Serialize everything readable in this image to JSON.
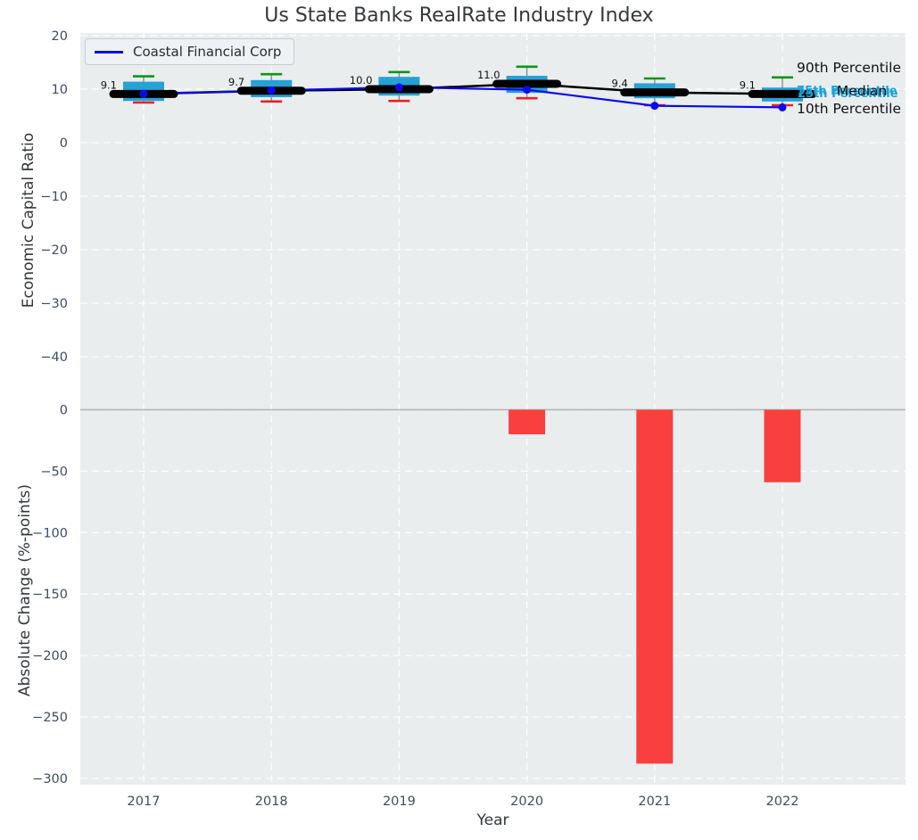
{
  "chart_data": {
    "type": "boxplot_line_bar_combo",
    "title": "Us State Banks RealRate Industry Index",
    "xlabel": "Year",
    "years": [
      2017,
      2018,
      2019,
      2020,
      2021,
      2022
    ],
    "x_tick_labels": [
      "2017",
      "2018",
      "2019",
      "2020",
      "2021",
      "2022"
    ],
    "top_panel": {
      "ylabel": "Economic Capital Ratio",
      "ylim": [
        -48,
        20.5
      ],
      "yticks": [
        20,
        10,
        0,
        -10,
        -20,
        -30,
        -40
      ],
      "grid": "white dashed gridlines on light gray panel",
      "boxes": [
        {
          "year": 2017,
          "p90": 12.4,
          "p75": 11.4,
          "median": 9.1,
          "p25": 7.8,
          "p10": 7.5
        },
        {
          "year": 2018,
          "p90": 12.8,
          "p75": 11.7,
          "median": 9.7,
          "p25": 8.5,
          "p10": 7.7
        },
        {
          "year": 2019,
          "p90": 13.2,
          "p75": 12.3,
          "median": 10.0,
          "p25": 8.8,
          "p10": 7.8
        },
        {
          "year": 2020,
          "p90": 14.2,
          "p75": 12.5,
          "median": 11.0,
          "p25": 9.3,
          "p10": 8.3
        },
        {
          "year": 2021,
          "p90": 12.0,
          "p75": 11.1,
          "median": 9.4,
          "p25": 8.3,
          "p10": 7.0
        },
        {
          "year": 2022,
          "p90": 12.2,
          "p75": 10.3,
          "median": 9.1,
          "p25": 7.7,
          "p10": 7.0
        }
      ],
      "median_labels": [
        "9.1",
        "9.7",
        "10.0",
        "11.0",
        "9.4",
        "9.1"
      ],
      "company_series": {
        "name": "Coastal Financial Corp",
        "values": [
          9.15,
          9.75,
          10.35,
          9.9,
          6.9,
          6.6
        ]
      },
      "annotations": {
        "p90_label": "90th Percentile",
        "median_label": "Median",
        "p75_label": "75th Percentile",
        "p25_label": "25th Percentile",
        "p10_label": "10th Percentile"
      }
    },
    "bottom_panel": {
      "ylabel": "Absolute Change (%-points)",
      "ylim": [
        -305,
        8.3
      ],
      "yticks": [
        0,
        -50,
        -100,
        -150,
        -200,
        -250,
        -300
      ],
      "bars": [
        {
          "year": 2020,
          "value": -20
        },
        {
          "year": 2021,
          "value": -288
        },
        {
          "year": 2022,
          "value": -59
        }
      ]
    },
    "colors": {
      "background": "#e9edee",
      "grid": "#ffffff",
      "box_fill": "#26a1d5",
      "p90_cap": "#109418",
      "p10_cap": "#e62325",
      "median_line": "#000000",
      "company_line": "#0a0af0",
      "bar": "#f9403e",
      "zero_line": "#b0b0b0",
      "whisker": "#8a8a8a",
      "tick_label": "#3f4d63",
      "text": "#34383b",
      "annotation_cyan": "#1ba3d9"
    }
  }
}
